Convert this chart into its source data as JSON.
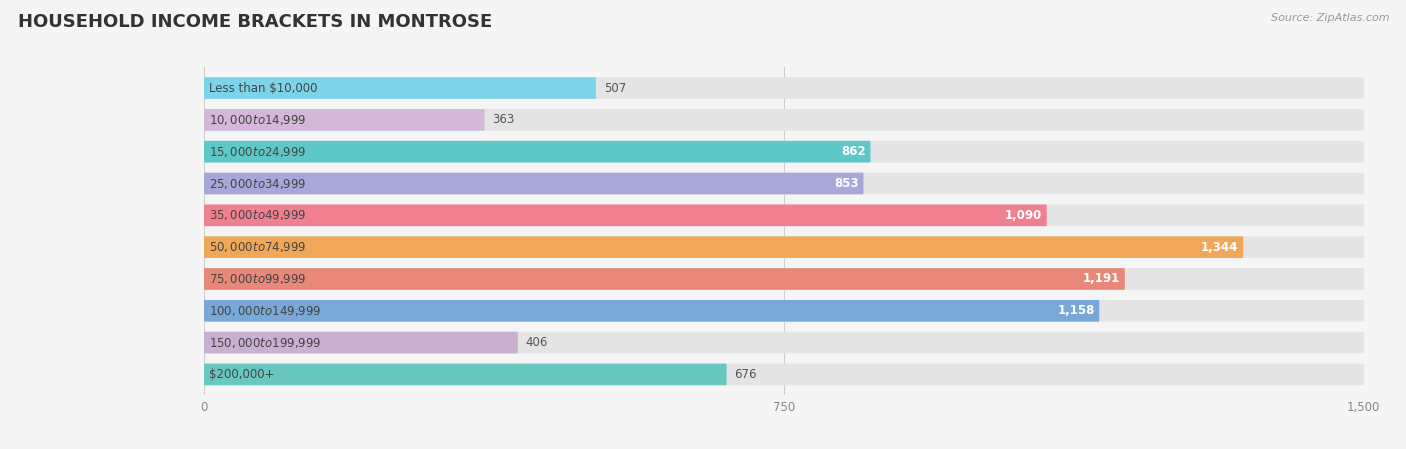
{
  "title": "HOUSEHOLD INCOME BRACKETS IN MONTROSE",
  "source": "Source: ZipAtlas.com",
  "categories": [
    "Less than $10,000",
    "$10,000 to $14,999",
    "$15,000 to $24,999",
    "$25,000 to $34,999",
    "$35,000 to $49,999",
    "$50,000 to $74,999",
    "$75,000 to $99,999",
    "$100,000 to $149,999",
    "$150,000 to $199,999",
    "$200,000+"
  ],
  "values": [
    507,
    363,
    862,
    853,
    1090,
    1344,
    1191,
    1158,
    406,
    676
  ],
  "colors": [
    "#7dd4e8",
    "#d4b8d8",
    "#5ec8c8",
    "#a8a8d8",
    "#f08090",
    "#f0a858",
    "#e88878",
    "#78a8d8",
    "#c8b0d0",
    "#68c8c0"
  ],
  "xlim": [
    0,
    1500
  ],
  "xticks": [
    0,
    750,
    1500
  ],
  "background_color": "#f5f5f5",
  "bar_bg_color": "#e4e4e4",
  "title_fontsize": 13,
  "label_fontsize": 8.5,
  "value_fontsize": 8.5,
  "bar_height": 0.68
}
